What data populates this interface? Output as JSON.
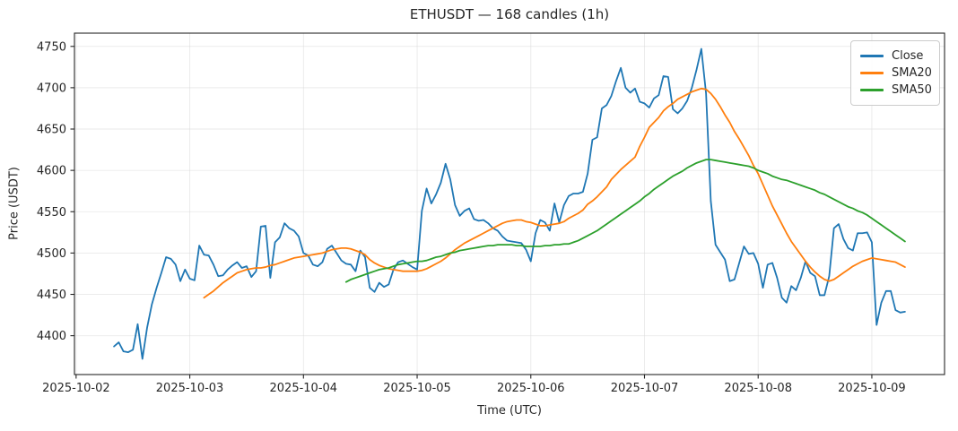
{
  "figure": {
    "title": "ETHUSDT — 168 candles (1h)",
    "xlabel": "Time (UTC)",
    "ylabel": "Price (USDT)"
  },
  "chart_data": {
    "type": "line",
    "title": "ETHUSDT — 168 candles (1h)",
    "xlabel": "Time (UTC)",
    "ylabel": "Price (USDT)",
    "x_unit": "hourly candle index (1h)",
    "grid": true,
    "legend_position": "upper right",
    "xlim": [
      -8.35,
      175.35
    ],
    "ylim": [
      4353,
      4766
    ],
    "y_ticks": [
      4400,
      4450,
      4500,
      4550,
      4600,
      4650,
      4700,
      4750
    ],
    "x_ticks": [
      {
        "label": "2025-10-02",
        "h": -8
      },
      {
        "label": "2025-10-03",
        "h": 16
      },
      {
        "label": "2025-10-04",
        "h": 40
      },
      {
        "label": "2025-10-05",
        "h": 64
      },
      {
        "label": "2025-10-06",
        "h": 88
      },
      {
        "label": "2025-10-07",
        "h": 112
      },
      {
        "label": "2025-10-08",
        "h": 136
      },
      {
        "label": "2025-10-09",
        "h": 160
      }
    ],
    "series": [
      {
        "name": "Close",
        "color": "#1f77b4",
        "values": [
          4387,
          4392,
          4381,
          4380,
          4383,
          4414,
          4372,
          4410,
          4438,
          4458,
          4476,
          4495,
          4493,
          4486,
          4466,
          4480,
          4469,
          4467,
          4509,
          4498,
          4497,
          4486,
          4472,
          4473,
          4480,
          4485,
          4489,
          4482,
          4484,
          4471,
          4478,
          4532,
          4533,
          4470,
          4513,
          4519,
          4536,
          4530,
          4527,
          4520,
          4500,
          4497,
          4486,
          4484,
          4489,
          4505,
          4509,
          4500,
          4491,
          4487,
          4486,
          4478,
          4503,
          4495,
          4458,
          4453,
          4464,
          4459,
          4462,
          4480,
          4489,
          4491,
          4487,
          4483,
          4480,
          4551,
          4578,
          4560,
          4571,
          4585,
          4608,
          4589,
          4558,
          4545,
          4551,
          4554,
          4541,
          4539,
          4540,
          4536,
          4530,
          4527,
          4520,
          4515,
          4514,
          4513,
          4512,
          4504,
          4490,
          4524,
          4540,
          4537,
          4527,
          4560,
          4537,
          4558,
          4569,
          4572,
          4572,
          4574,
          4596,
          4637,
          4640,
          4675,
          4679,
          4690,
          4708,
          4724,
          4700,
          4694,
          4699,
          4683,
          4681,
          4676,
          4687,
          4691,
          4714,
          4713,
          4674,
          4669,
          4675,
          4684,
          4700,
          4722,
          4747,
          4693,
          4563,
          4510,
          4501,
          4492,
          4466,
          4468,
          4488,
          4508,
          4499,
          4500,
          4487,
          4458,
          4486,
          4488,
          4470,
          4446,
          4440,
          4460,
          4455,
          4470,
          4490,
          4476,
          4472,
          4449,
          4449,
          4472,
          4530,
          4535,
          4517,
          4506,
          4503,
          4524,
          4524,
          4525,
          4513,
          4413,
          4440,
          4454,
          4454,
          4431,
          4428,
          4429
        ]
      },
      {
        "name": "SMA20",
        "color": "#ff7f0e",
        "values": [
          null,
          null,
          null,
          null,
          null,
          null,
          null,
          null,
          null,
          null,
          null,
          null,
          null,
          null,
          null,
          null,
          null,
          null,
          null,
          4446,
          4450,
          4454,
          4459,
          4464,
          4468,
          4472,
          4476,
          4478,
          4480,
          4481,
          4482,
          4482,
          4483,
          4485,
          4486,
          4488,
          4490,
          4492,
          4494,
          4495,
          4496,
          4497,
          4498,
          4499,
          4500,
          4502,
          4504,
          4505,
          4506,
          4506,
          4505,
          4503,
          4501,
          4498,
          4492,
          4488,
          4485,
          4483,
          4481,
          4480,
          4479,
          4478,
          4478,
          4478,
          4478,
          4479,
          4481,
          4484,
          4487,
          4490,
          4494,
          4499,
          4504,
          4508,
          4512,
          4515,
          4518,
          4521,
          4524,
          4527,
          4530,
          4533,
          4536,
          4538,
          4539,
          4540,
          4540,
          4538,
          4537,
          4535,
          4533,
          4533,
          4534,
          4535,
          4536,
          4538,
          4542,
          4545,
          4548,
          4552,
          4559,
          4563,
          4568,
          4574,
          4580,
          4589,
          4595,
          4601,
          4606,
          4611,
          4616,
          4629,
          4640,
          4652,
          4658,
          4664,
          4672,
          4677,
          4681,
          4686,
          4689,
          4692,
          4695,
          4697,
          4699,
          4698,
          4693,
          4686,
          4677,
          4667,
          4658,
          4647,
          4638,
          4628,
          4618,
          4606,
          4596,
          4583,
          4570,
          4557,
          4546,
          4535,
          4524,
          4514,
          4506,
          4498,
          4490,
          4483,
          4477,
          4472,
          4468,
          4466,
          4468,
          4472,
          4476,
          4480,
          4484,
          4487,
          4490,
          4492,
          4494,
          4493,
          4492,
          4491,
          4490,
          4489,
          4486,
          4483
        ]
      },
      {
        "name": "SMA50",
        "color": "#2ca02c",
        "values": [
          null,
          null,
          null,
          null,
          null,
          null,
          null,
          null,
          null,
          null,
          null,
          null,
          null,
          null,
          null,
          null,
          null,
          null,
          null,
          null,
          null,
          null,
          null,
          null,
          null,
          null,
          null,
          null,
          null,
          null,
          null,
          null,
          null,
          null,
          null,
          null,
          null,
          null,
          null,
          null,
          null,
          null,
          null,
          null,
          null,
          null,
          null,
          null,
          null,
          4465,
          4468,
          4470,
          4472,
          4474,
          4476,
          4478,
          4480,
          4481,
          4482,
          4484,
          4486,
          4487,
          4488,
          4489,
          4490,
          4490,
          4491,
          4493,
          4495,
          4496,
          4498,
          4500,
          4501,
          4503,
          4504,
          4505,
          4506,
          4507,
          4508,
          4509,
          4509,
          4510,
          4510,
          4510,
          4510,
          4509,
          4509,
          4508,
          4508,
          4508,
          4508,
          4509,
          4509,
          4510,
          4510,
          4511,
          4511,
          4513,
          4515,
          4518,
          4521,
          4524,
          4527,
          4531,
          4535,
          4539,
          4543,
          4547,
          4551,
          4555,
          4559,
          4563,
          4568,
          4572,
          4577,
          4581,
          4585,
          4589,
          4593,
          4596,
          4599,
          4603,
          4606,
          4609,
          4611,
          4613,
          4613,
          4612,
          4611,
          4610,
          4609,
          4608,
          4607,
          4606,
          4605,
          4603,
          4600,
          4598,
          4596,
          4593,
          4591,
          4589,
          4588,
          4586,
          4584,
          4582,
          4580,
          4578,
          4576,
          4573,
          4571,
          4568,
          4565,
          4562,
          4559,
          4556,
          4554,
          4551,
          4549,
          4546,
          4542,
          4538,
          4534,
          4530,
          4526,
          4522,
          4518,
          4514
        ]
      }
    ]
  }
}
